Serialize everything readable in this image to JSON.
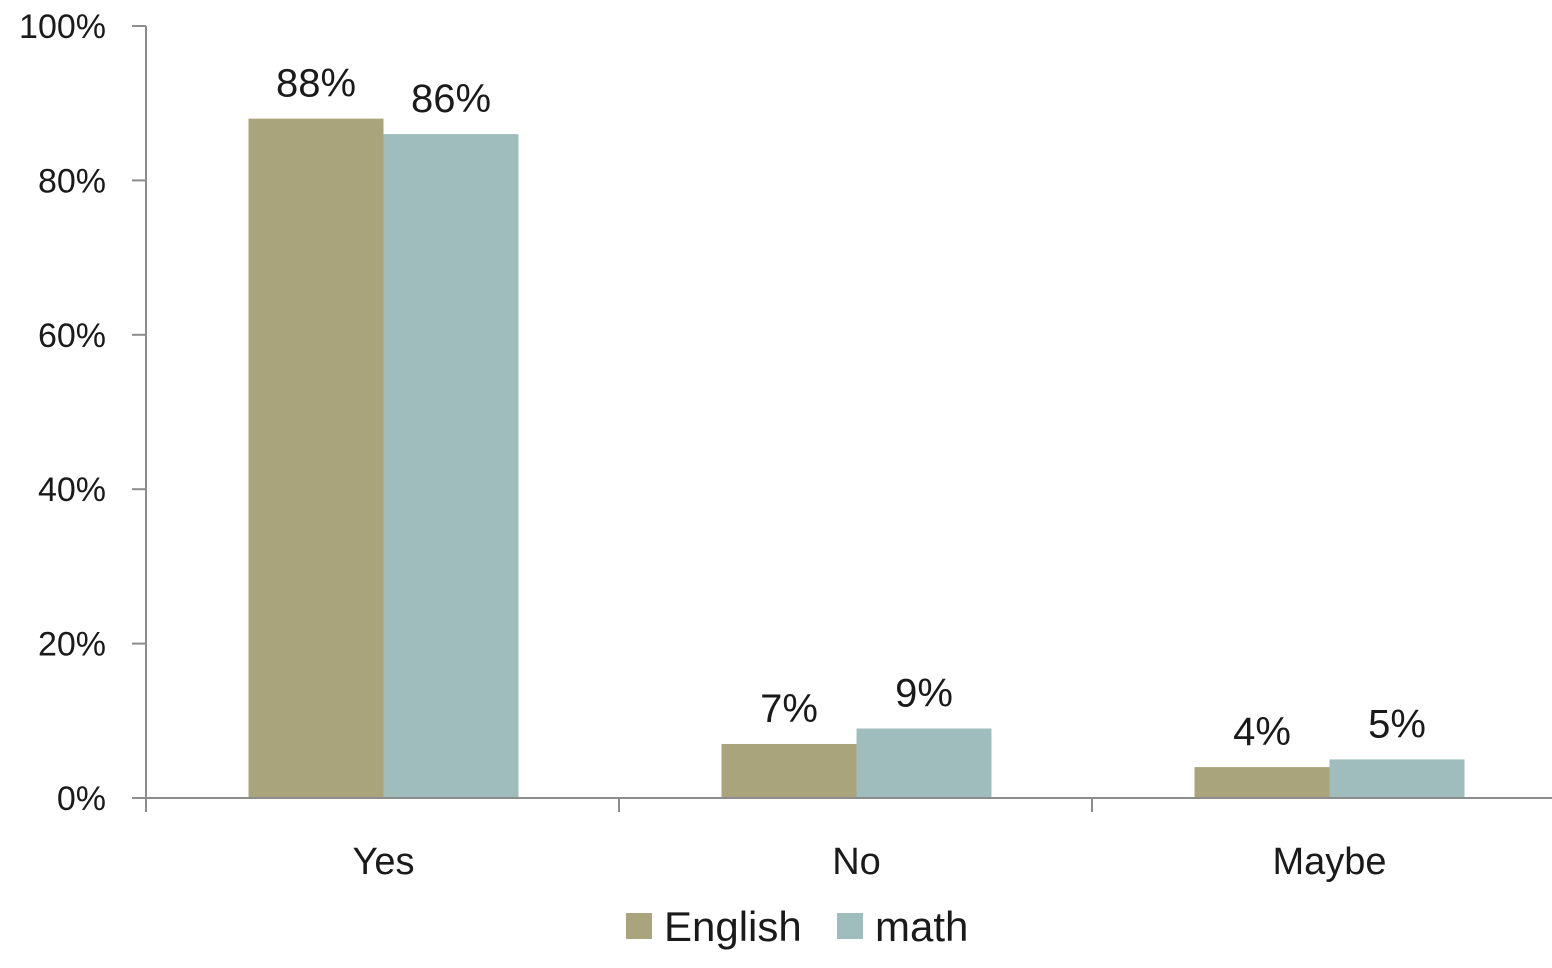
{
  "chart_data": {
    "type": "bar",
    "title": "",
    "xlabel": "",
    "ylabel": "",
    "categories": [
      "Yes",
      "No",
      "Maybe"
    ],
    "series": [
      {
        "name": "English",
        "color": "#a9a47b",
        "values": [
          88,
          7,
          4
        ],
        "labels": [
          "88%",
          "7%",
          "4%"
        ]
      },
      {
        "name": "math",
        "color": "#9fbdbc",
        "values": [
          86,
          9,
          5
        ],
        "labels": [
          "86%",
          "9%",
          "5%"
        ]
      }
    ],
    "ylim": [
      0,
      100
    ],
    "yticks": [
      0,
      20,
      40,
      60,
      80,
      100
    ],
    "ytick_labels": [
      "0%",
      "20%",
      "40%",
      "60%",
      "80%",
      "100%"
    ],
    "grid": false,
    "legend": "bottom-center",
    "axis_color": "#8c8c8c"
  }
}
